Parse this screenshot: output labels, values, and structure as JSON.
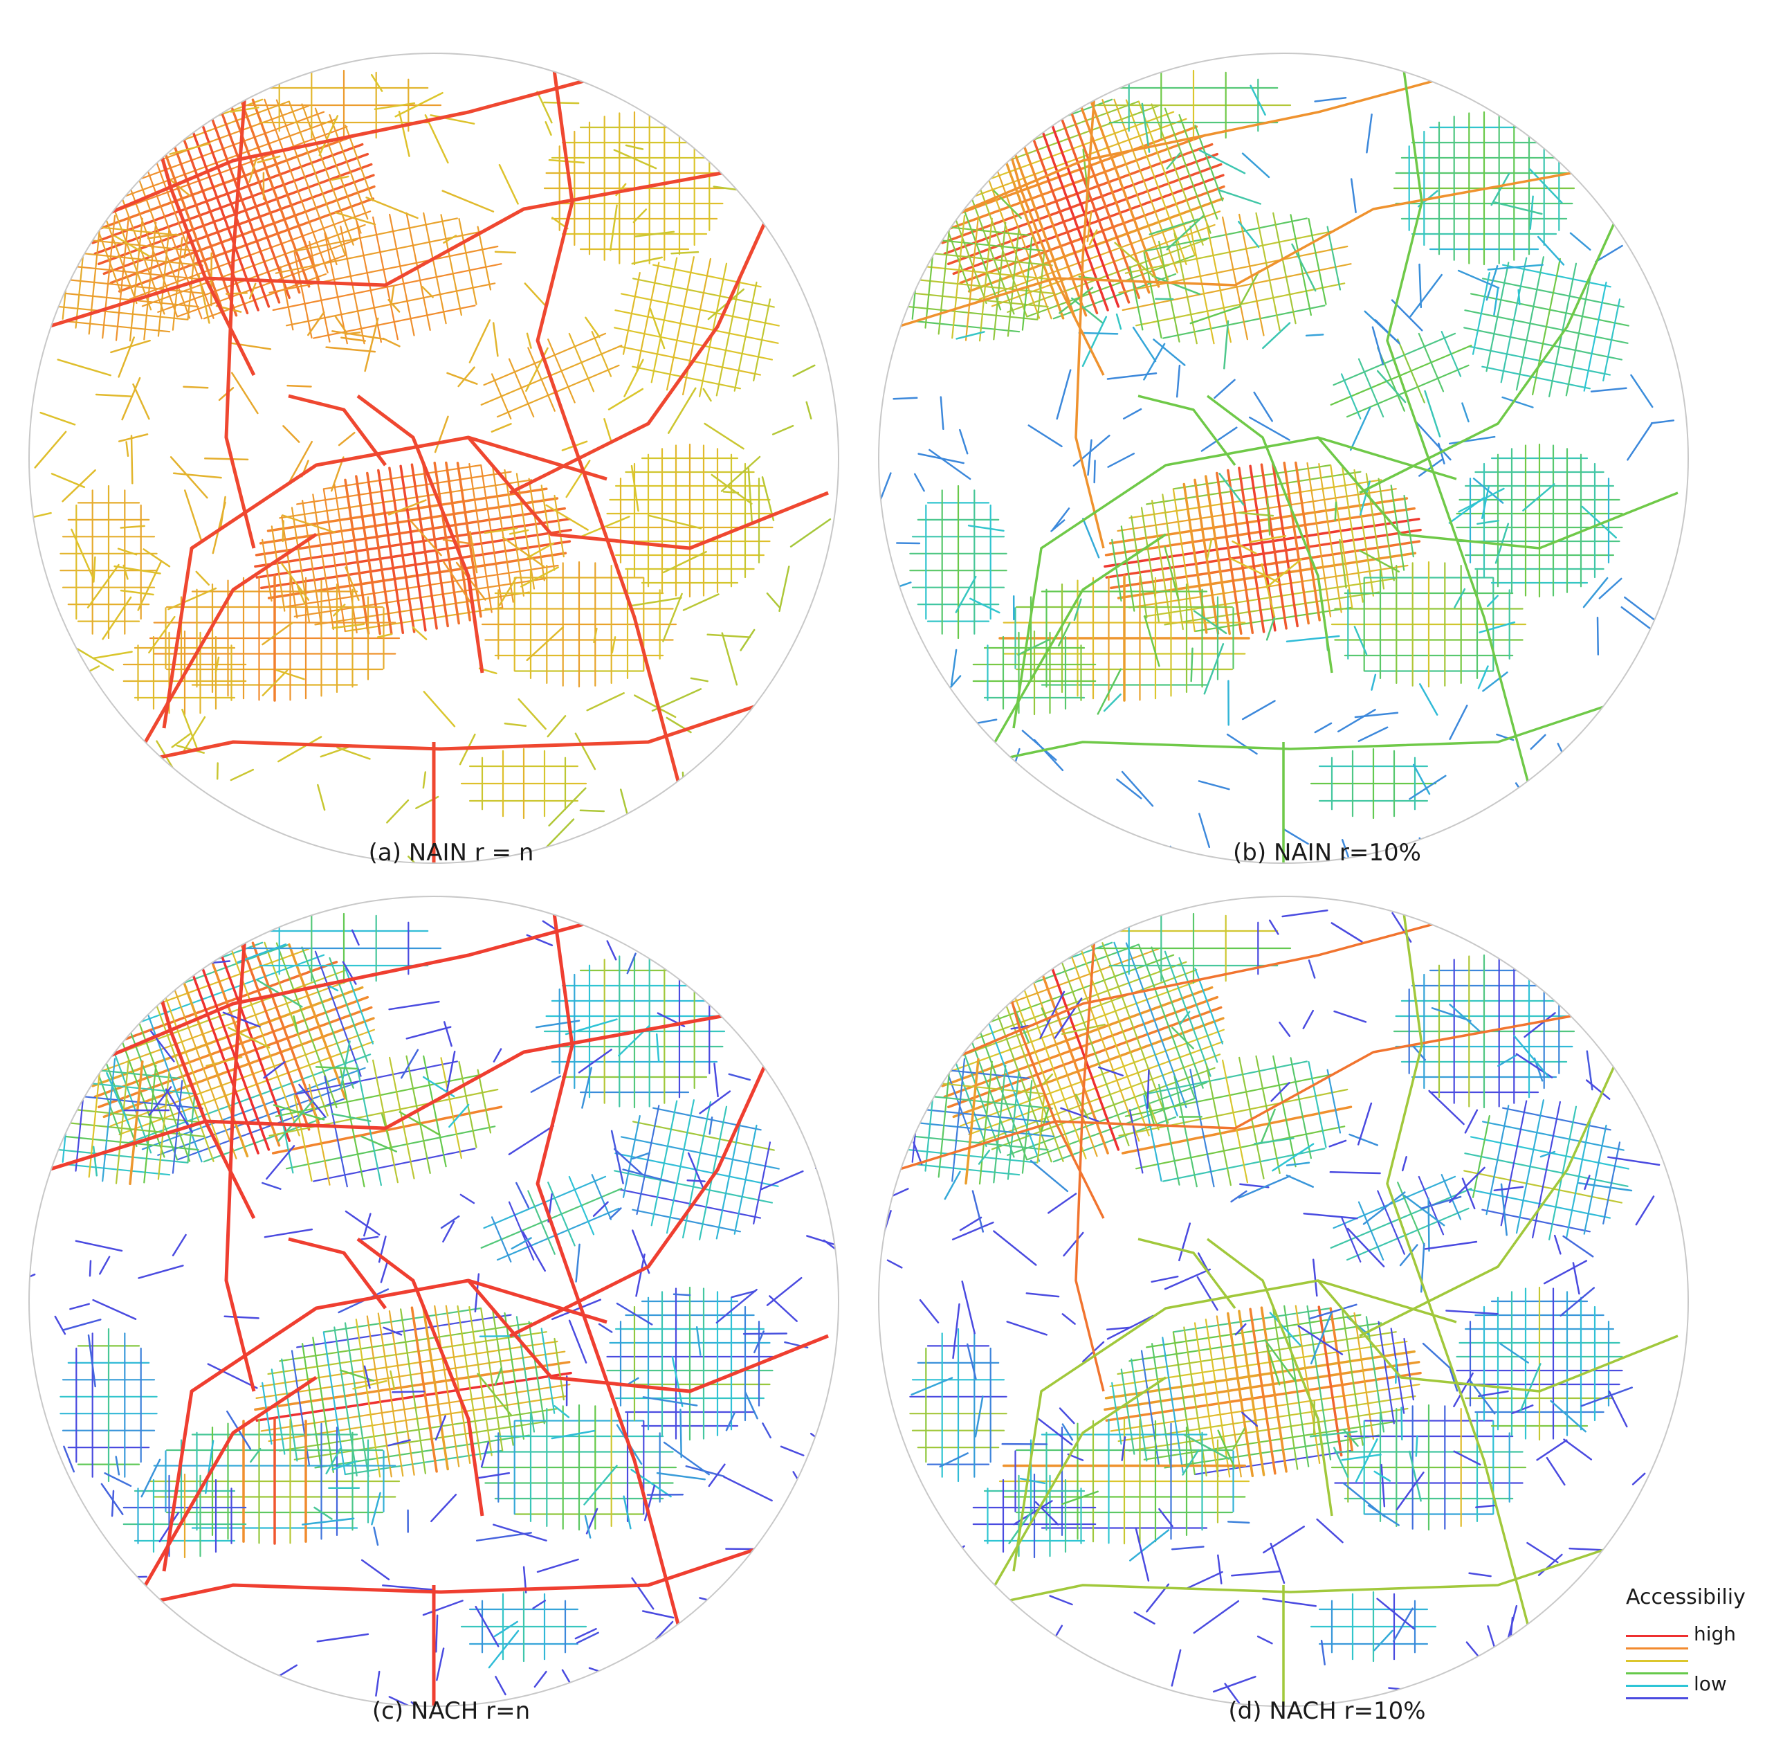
{
  "figure": {
    "panels": [
      {
        "id": "a",
        "caption": "(a) NAIN r = n",
        "scheme": "nain_global"
      },
      {
        "id": "b",
        "caption": "(b) NAIN r=10%",
        "scheme": "nain_local"
      },
      {
        "id": "c",
        "caption": "(c) NACH r=n",
        "scheme": "nach_global"
      },
      {
        "id": "d",
        "caption": "(d) NACH r=10%",
        "scheme": "nach_local"
      }
    ]
  },
  "legend": {
    "title": "Accessibiliy",
    "high_label": "high",
    "low_label": "low",
    "colors": [
      "#ee3030",
      "#f28a2e",
      "#dcc62c",
      "#66c94a",
      "#2ec5d6",
      "#4a4ae0"
    ]
  }
}
